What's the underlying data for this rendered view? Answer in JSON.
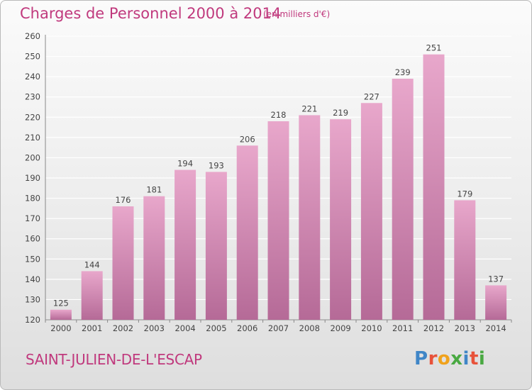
{
  "title": "Charges de Personnel 2000 à 2014",
  "subtitle": "(en milliers d'€)",
  "commune": "SAINT-JULIEN-DE-L'ESCAP",
  "logo": {
    "text": "Proxiti",
    "letter_colors": [
      "#3f86c7",
      "#e8523a",
      "#f0a21c",
      "#49a942",
      "#3f86c7",
      "#e8523a",
      "#49a942"
    ]
  },
  "colors": {
    "bar_top": "#e8a7cb",
    "bar_bottom": "#b56a97",
    "accent": "#c0397d",
    "grid": "#ffffff",
    "text": "#444444"
  },
  "chart_data": {
    "type": "bar",
    "title": "Charges de Personnel 2000 à 2014",
    "subtitle": "(en milliers d'€)",
    "categories": [
      "2000",
      "2001",
      "2002",
      "2003",
      "2004",
      "2005",
      "2006",
      "2007",
      "2008",
      "2009",
      "2010",
      "2011",
      "2012",
      "2013",
      "2014"
    ],
    "values": [
      125,
      144,
      176,
      181,
      194,
      193,
      206,
      218,
      221,
      219,
      227,
      239,
      251,
      179,
      137
    ],
    "ylim": [
      120,
      260
    ],
    "yticks": [
      120,
      130,
      140,
      150,
      160,
      170,
      180,
      190,
      200,
      210,
      220,
      230,
      240,
      250,
      260
    ],
    "grid": true,
    "data_labels": true
  }
}
